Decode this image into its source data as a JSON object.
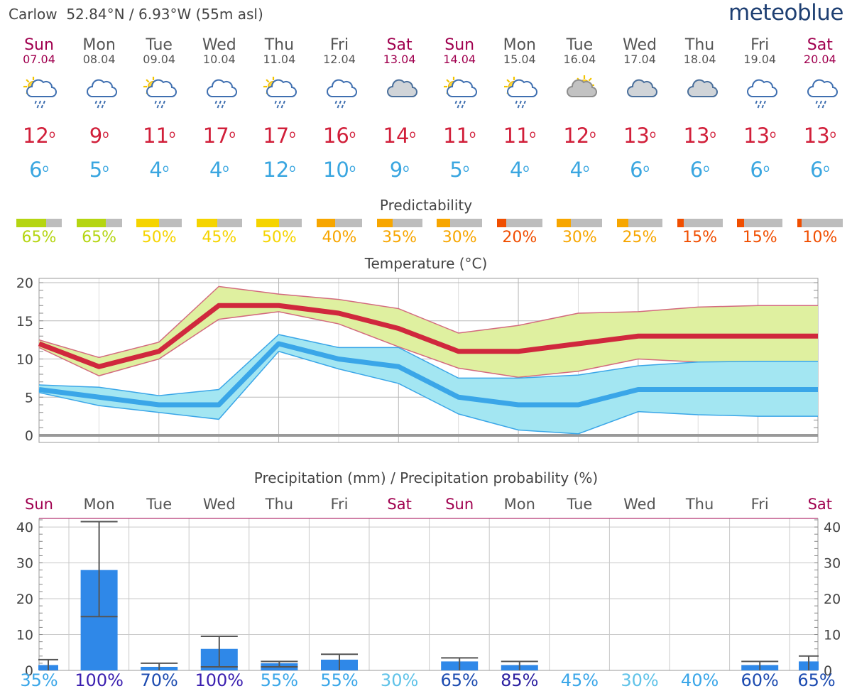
{
  "header": {
    "location": "Carlow",
    "coords": "52.84°N / 6.93°W (55m asl)",
    "logo": "meteoblue"
  },
  "days": [
    {
      "name": "Sun",
      "date": "07.04",
      "weekend": true,
      "icon": "sun-cloud-rain-icon",
      "tmax": "12",
      "tmin": "6",
      "pred": 65,
      "pred_label": "65%",
      "pred_color": "#b5d512"
    },
    {
      "name": "Mon",
      "date": "08.04",
      "weekend": false,
      "icon": "cloud-rain-icon",
      "tmax": "9",
      "tmin": "5",
      "pred": 65,
      "pred_label": "65%",
      "pred_color": "#b5d512"
    },
    {
      "name": "Tue",
      "date": "09.04",
      "weekend": false,
      "icon": "sun-cloud-rain-icon",
      "tmax": "11",
      "tmin": "4",
      "pred": 50,
      "pred_label": "50%",
      "pred_color": "#f5d400"
    },
    {
      "name": "Wed",
      "date": "10.04",
      "weekend": false,
      "icon": "cloud-rain-icon",
      "tmax": "17",
      "tmin": "4",
      "pred": 45,
      "pred_label": "45%",
      "pred_color": "#f5d400"
    },
    {
      "name": "Thu",
      "date": "11.04",
      "weekend": false,
      "icon": "sun-cloud-rain-icon",
      "tmax": "17",
      "tmin": "12",
      "pred": 50,
      "pred_label": "50%",
      "pred_color": "#f5d400"
    },
    {
      "name": "Fri",
      "date": "12.04",
      "weekend": false,
      "icon": "cloud-rain-icon",
      "tmax": "16",
      "tmin": "10",
      "pred": 40,
      "pred_label": "40%",
      "pred_color": "#f7a600"
    },
    {
      "name": "Sat",
      "date": "13.04",
      "weekend": true,
      "icon": "cloud-icon",
      "tmax": "14",
      "tmin": "9",
      "pred": 35,
      "pred_label": "35%",
      "pred_color": "#f7a600"
    },
    {
      "name": "Sun",
      "date": "14.04",
      "weekend": true,
      "icon": "sun-cloud-rain-icon",
      "tmax": "11",
      "tmin": "5",
      "pred": 30,
      "pred_label": "30%",
      "pred_color": "#f7a600"
    },
    {
      "name": "Mon",
      "date": "15.04",
      "weekend": false,
      "icon": "sun-cloud-rain-icon",
      "tmax": "11",
      "tmin": "4",
      "pred": 20,
      "pred_label": "20%",
      "pred_color": "#f04e00"
    },
    {
      "name": "Tue",
      "date": "16.04",
      "weekend": false,
      "icon": "sun-cloud-icon",
      "tmax": "12",
      "tmin": "4",
      "pred": 30,
      "pred_label": "30%",
      "pred_color": "#f7a600"
    },
    {
      "name": "Wed",
      "date": "17.04",
      "weekend": false,
      "icon": "cloud-icon",
      "tmax": "13",
      "tmin": "6",
      "pred": 25,
      "pred_label": "25%",
      "pred_color": "#f7a600"
    },
    {
      "name": "Thu",
      "date": "18.04",
      "weekend": false,
      "icon": "cloud-icon",
      "tmax": "13",
      "tmin": "6",
      "pred": 15,
      "pred_label": "15%",
      "pred_color": "#f04e00"
    },
    {
      "name": "Fri",
      "date": "19.04",
      "weekend": false,
      "icon": "cloud-rain-icon",
      "tmax": "13",
      "tmin": "6",
      "pred": 15,
      "pred_label": "15%",
      "pred_color": "#f04e00"
    },
    {
      "name": "Sat",
      "date": "20.04",
      "weekend": true,
      "icon": "cloud-rain-icon",
      "tmax": "13",
      "tmin": "6",
      "pred": 10,
      "pred_label": "10%",
      "pred_color": "#f04e00"
    }
  ],
  "predictability_title": "Predictability",
  "chart_data": [
    {
      "type": "line",
      "title": "Temperature (°C)",
      "ylim": [
        0,
        20
      ],
      "yticks": [
        0,
        5,
        10,
        15,
        20
      ],
      "grid": true,
      "x": [
        "07.04",
        "08.04",
        "09.04",
        "10.04",
        "11.04",
        "12.04",
        "13.04",
        "14.04",
        "15.04",
        "16.04",
        "17.04",
        "18.04",
        "19.04",
        "20.04"
      ],
      "series": [
        {
          "name": "max",
          "color": "#d0283d",
          "values": [
            12,
            9,
            11,
            17,
            17,
            16,
            14,
            11,
            11,
            12,
            13,
            13,
            13,
            13
          ]
        },
        {
          "name": "max_upper",
          "color": "#e9829a",
          "values": [
            12.5,
            10.2,
            12.2,
            19.5,
            18.5,
            17.8,
            16.6,
            13.4,
            14.4,
            16,
            16.2,
            16.8,
            17,
            17
          ]
        },
        {
          "name": "max_lower",
          "color": "#e9829a",
          "values": [
            11.5,
            7.8,
            10,
            15.2,
            16.2,
            14.6,
            11.6,
            8.8,
            7.6,
            8.4,
            10,
            9.6,
            9.6,
            9.6
          ]
        },
        {
          "name": "min",
          "color": "#3aa6e8",
          "values": [
            6,
            5,
            4,
            4,
            12,
            10,
            9,
            5,
            4,
            4,
            6,
            6,
            6,
            6
          ]
        },
        {
          "name": "min_upper",
          "color": "#3aa6e8",
          "values": [
            6.6,
            6.3,
            5.2,
            6,
            13.2,
            11.5,
            11.5,
            7.5,
            7.5,
            7.9,
            9.1,
            9.6,
            9.7,
            9.7
          ]
        },
        {
          "name": "min_lower",
          "color": "#3aa6e8",
          "values": [
            5.6,
            3.9,
            3,
            2.1,
            11,
            8.7,
            6.8,
            2.8,
            0.7,
            0.2,
            3.1,
            2.7,
            2.5,
            2.5
          ]
        }
      ]
    },
    {
      "type": "bar",
      "title": "Precipitation (mm) / Precipitation probability (%)",
      "ylim": [
        0,
        42
      ],
      "yticks": [
        0,
        10,
        20,
        30,
        40
      ],
      "grid": true,
      "categories": [
        "Sun",
        "Mon",
        "Tue",
        "Wed",
        "Thu",
        "Fri",
        "Sat",
        "Sun",
        "Mon",
        "Tue",
        "Wed",
        "Thu",
        "Fri",
        "Sat"
      ],
      "weekend": [
        true,
        false,
        false,
        false,
        false,
        false,
        true,
        true,
        false,
        false,
        false,
        false,
        false,
        true
      ],
      "values": [
        1.5,
        28,
        1,
        6,
        2,
        3,
        0,
        2.5,
        1.5,
        0,
        0,
        0,
        1.5,
        2.5
      ],
      "range_low": [
        0,
        15,
        0,
        1,
        1,
        0,
        null,
        0,
        0,
        null,
        null,
        null,
        0,
        0
      ],
      "range_high": [
        3,
        41.5,
        2,
        9.5,
        2.5,
        4.5,
        null,
        3.5,
        2.5,
        null,
        null,
        null,
        2.5,
        4
      ],
      "probability_labels": [
        "35%",
        "100%",
        "70%",
        "100%",
        "55%",
        "55%",
        "30%",
        "65%",
        "85%",
        "45%",
        "30%",
        "40%",
        "60%",
        "65%"
      ],
      "probability_colors": [
        "#3aa6e8",
        "#3b1fb0",
        "#1c4bb0",
        "#3b1fb0",
        "#3aa6e8",
        "#3aa6e8",
        "#5fc2e8",
        "#1c4bb0",
        "#2a1fa0",
        "#3aa6e8",
        "#5fc2e8",
        "#3aa6e8",
        "#1c4bb0",
        "#1c4bb0"
      ]
    }
  ],
  "colors": {
    "weekend": "#a0004f",
    "weekday": "#555555",
    "max_band": "#dff0a0",
    "min_band": "#a3e6f2",
    "bar": "#2f88e8",
    "zero_line": "#999999"
  }
}
